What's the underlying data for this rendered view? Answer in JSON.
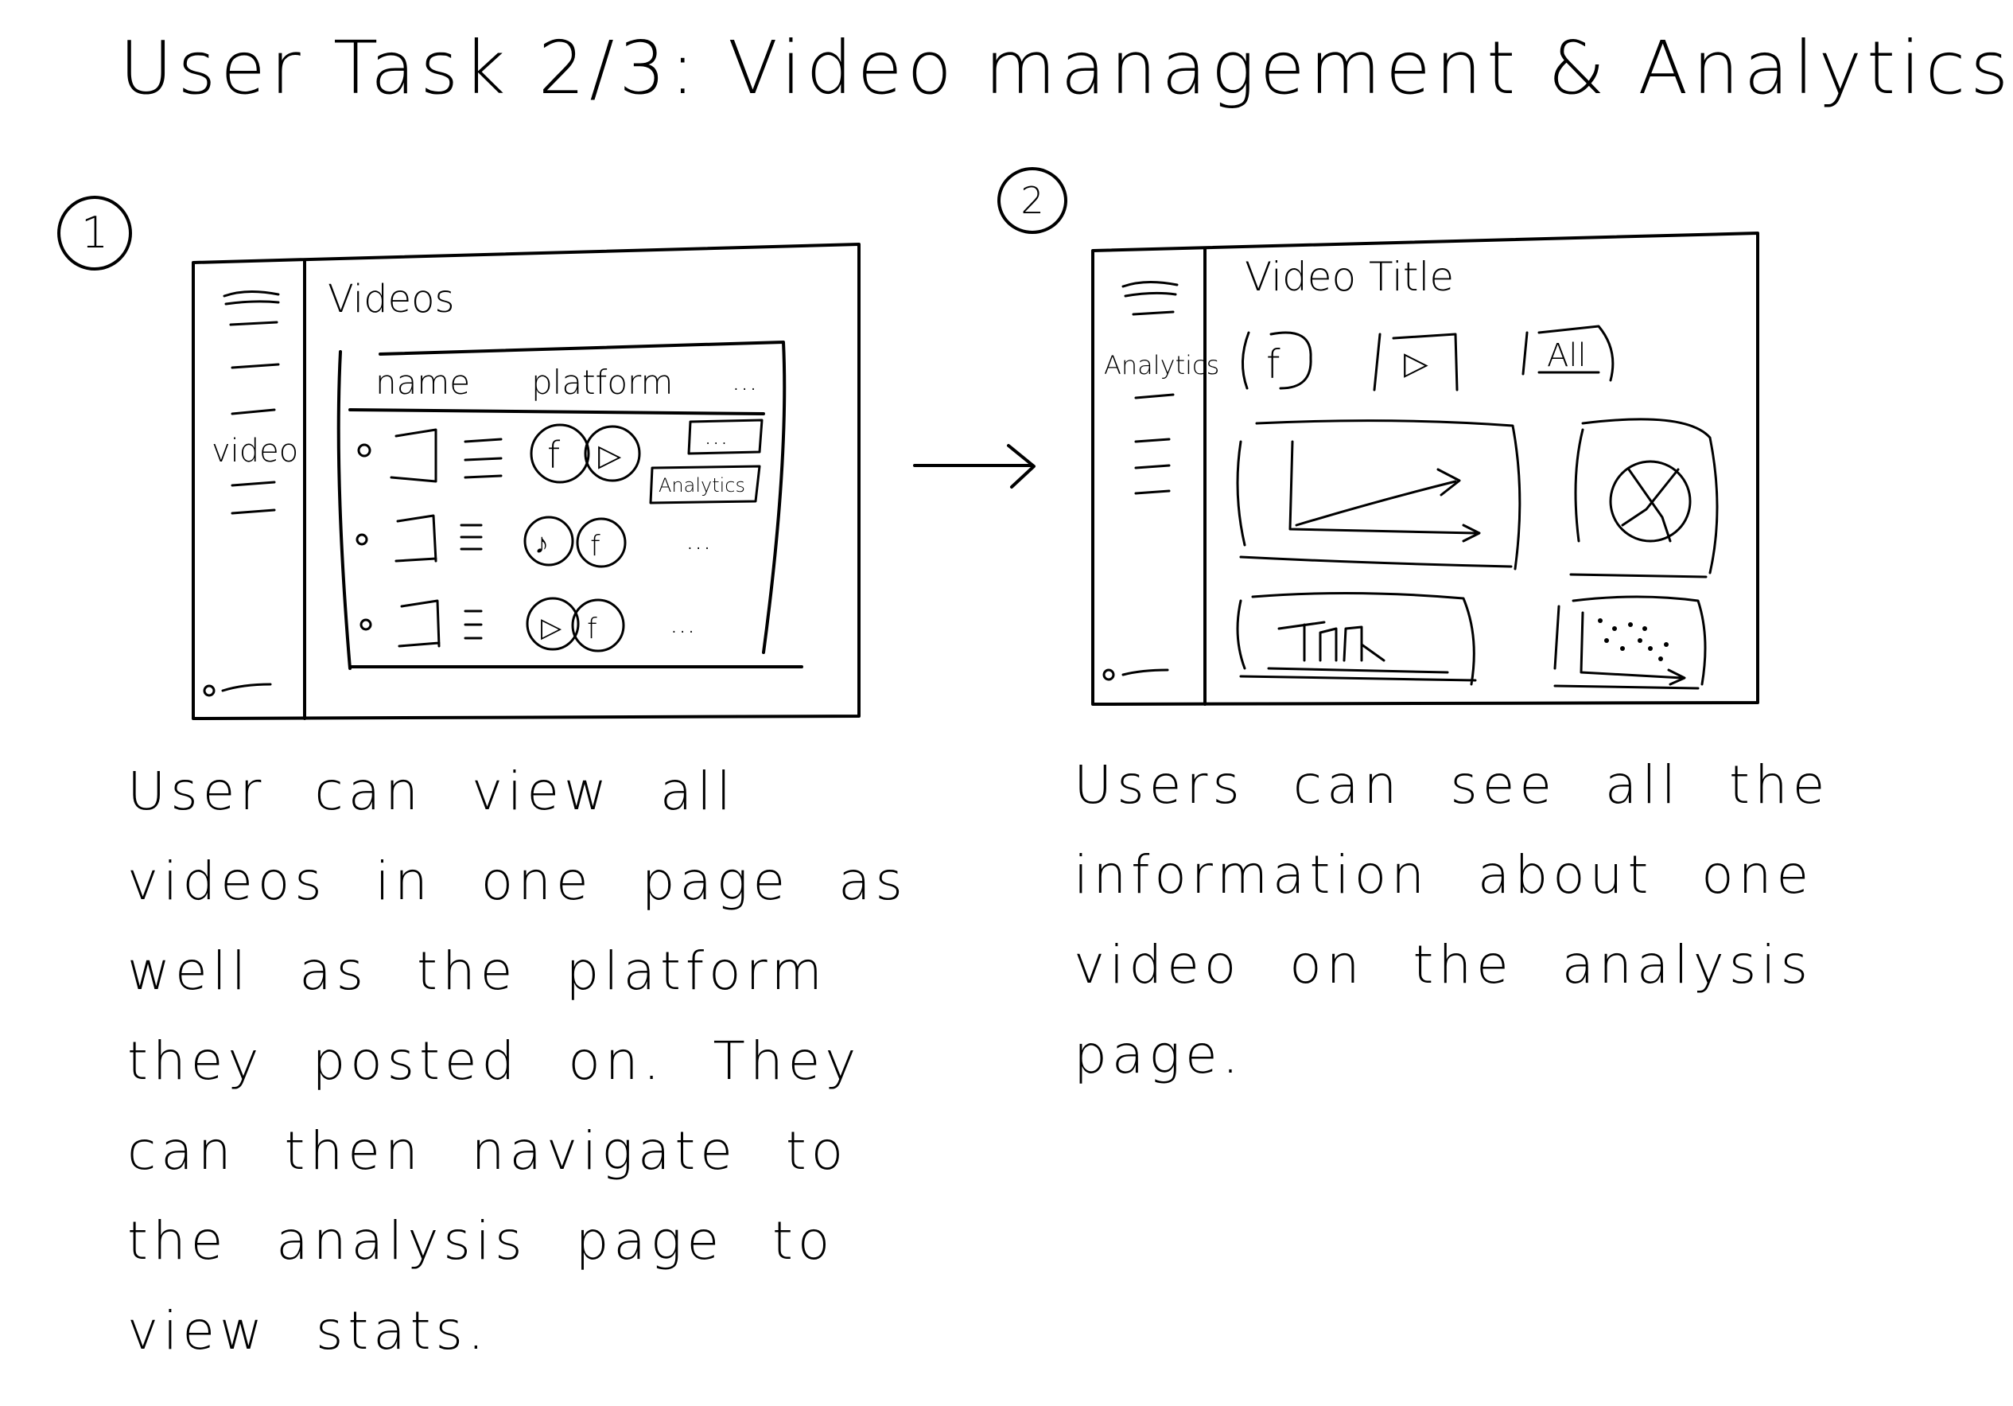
{
  "title": "User Task 2/3: Video management & Analytics",
  "steps": [
    {
      "number": "1",
      "sidebar": {
        "active_item": "video"
      },
      "main": {
        "heading": "Videos",
        "columns": [
          "name",
          "platform",
          "..."
        ],
        "rows": [
          {
            "platforms": [
              "f",
              "▷"
            ],
            "actions": [
              "...",
              "Analytics"
            ]
          },
          {
            "platforms": [
              "♪",
              "f"
            ],
            "actions": [
              "..."
            ]
          },
          {
            "platforms": [
              "▷",
              "f"
            ],
            "actions": [
              "..."
            ]
          }
        ]
      },
      "caption": "User can view all videos in one page as well as the platform they posted on. They can then navigate to the analysis page to view stats."
    },
    {
      "number": "2",
      "sidebar": {
        "active_item": "Analytics"
      },
      "main": {
        "heading": "Video Title",
        "filters": [
          "f",
          "▷",
          "All"
        ],
        "panels": [
          "line-chart",
          "pie-chart",
          "bar-chart",
          "scatter-chart"
        ]
      },
      "caption": "Users can see all the information about one video on the analysis page."
    }
  ],
  "icons": [
    "hamburger-icon",
    "settings-icon",
    "facebook-icon",
    "youtube-play-icon",
    "tiktok-music-icon",
    "arrow-icon"
  ]
}
